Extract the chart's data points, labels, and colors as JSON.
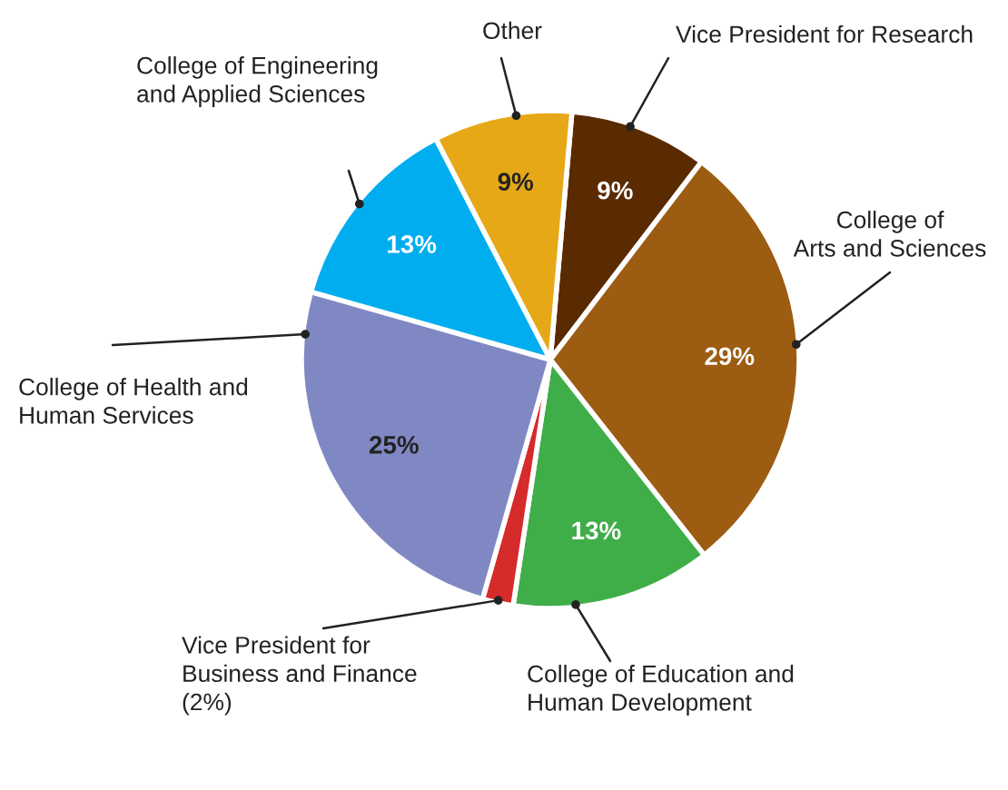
{
  "chart_data": {
    "type": "pie",
    "categories": [
      "Vice President for Research",
      "College of\nArts and Sciences",
      "College of Education and\nHuman Development",
      "Vice President for\nBusiness and Finance\n(2%)",
      "College of Health and\nHuman Services",
      "College of Engineering\nand Applied Sciences",
      "Other"
    ],
    "values": [
      9,
      29,
      13,
      2,
      25,
      13,
      9
    ],
    "colors": [
      "#5a2a00",
      "#9c5c12",
      "#3fae49",
      "#d62b2b",
      "#8088c4",
      "#00aeef",
      "#e6a817"
    ],
    "value_labels": [
      "9%",
      "29%",
      "13%",
      null,
      "25%",
      "13%",
      "9%"
    ],
    "legend": false
  }
}
